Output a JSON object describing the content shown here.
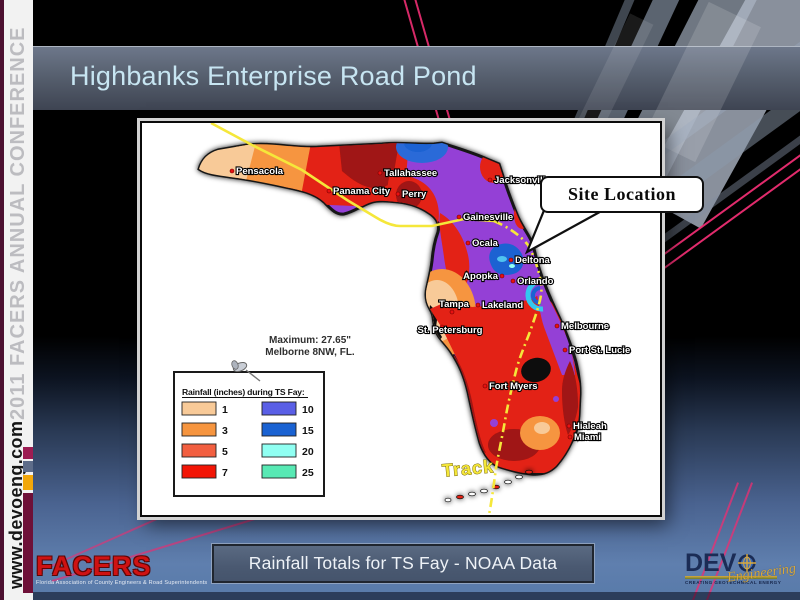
{
  "slide": {
    "title": "Highbanks Enterprise Road Pond"
  },
  "sidebar": {
    "conference": "2011 FACERS ANNUAL CONFERENCE",
    "website": "www.devoeng.com"
  },
  "map": {
    "callout": "Site Location",
    "track_label": "Track",
    "maximum_line1": "Maximum: 27.65\"",
    "maximum_line2": "Melborne 8NW, FL.",
    "legend": {
      "title": "Rainfall (inches) during TS Fay:",
      "items": [
        {
          "label": "1",
          "color": "#F8CA98"
        },
        {
          "label": "3",
          "color": "#F6953F"
        },
        {
          "label": "5",
          "color": "#F25F40"
        },
        {
          "label": "7",
          "color": "#F21505"
        },
        {
          "label": "10",
          "color": "#5A5FE6"
        },
        {
          "label": "15",
          "color": "#1A62D2"
        },
        {
          "label": "20",
          "color": "#90FFF2"
        },
        {
          "label": "25",
          "color": "#58E9B4"
        }
      ]
    },
    "cities": [
      {
        "name": "Pensacola",
        "label": [
          94,
          51
        ],
        "anchor": "start",
        "dot": [
          90,
          48
        ]
      },
      {
        "name": "Panama City",
        "label": [
          191,
          71
        ],
        "anchor": "start",
        "dot": [
          187,
          68
        ]
      },
      {
        "name": "Tallahassee",
        "label": [
          242,
          53
        ],
        "anchor": "start",
        "dot": [
          238,
          50
        ]
      },
      {
        "name": "Perry",
        "label": [
          260,
          74
        ],
        "anchor": "start",
        "dot": [
          256,
          71
        ]
      },
      {
        "name": "Jacksonville",
        "label": [
          352,
          60
        ],
        "anchor": "start",
        "dot": [
          348,
          57
        ]
      },
      {
        "name": "Gainesville",
        "label": [
          321,
          97
        ],
        "anchor": "start",
        "dot": [
          317,
          94
        ]
      },
      {
        "name": "Ocala",
        "label": [
          330,
          123
        ],
        "anchor": "start",
        "dot": [
          326,
          120
        ]
      },
      {
        "name": "Deltona",
        "label": [
          373,
          140
        ],
        "anchor": "start",
        "dot": [
          369,
          137
        ]
      },
      {
        "name": "Apopka",
        "label": [
          356,
          156
        ],
        "anchor": "end",
        "dot": [
          360,
          153
        ]
      },
      {
        "name": "Orlando",
        "label": [
          375,
          161
        ],
        "anchor": "start",
        "dot": [
          371,
          158
        ]
      },
      {
        "name": "Tampa",
        "label": [
          312,
          184
        ],
        "anchor": "middle",
        "dot": [
          310,
          189
        ]
      },
      {
        "name": "Lakeland",
        "label": [
          340,
          185
        ],
        "anchor": "start",
        "dot": [
          336,
          182
        ]
      },
      {
        "name": "St. Petersburg",
        "label": [
          308,
          210
        ],
        "anchor": "middle",
        "dot": [
          300,
          204
        ]
      },
      {
        "name": "Melbourne",
        "label": [
          419,
          206
        ],
        "anchor": "start",
        "dot": [
          415,
          203
        ]
      },
      {
        "name": "Port St. Lucie",
        "label": [
          427,
          230
        ],
        "anchor": "start",
        "dot": [
          423,
          227
        ]
      },
      {
        "name": "Fort Myers",
        "label": [
          347,
          266
        ],
        "anchor": "start",
        "dot": [
          343,
          263
        ]
      },
      {
        "name": "Hialeah",
        "label": [
          431,
          306
        ],
        "anchor": "start",
        "dot": [
          427,
          303
        ]
      },
      {
        "name": "Miami",
        "label": [
          432,
          317
        ],
        "anchor": "start",
        "dot": [
          428,
          314
        ]
      }
    ]
  },
  "caption": "Rainfall Totals for TS Fay - NOAA Data",
  "footer": {
    "facers": "FACERS",
    "facers_tagline": "Florida Association of County Engineers & Road Superintendents",
    "devo_name": "DEV",
    "devo_script": "Engineering",
    "devo_tagline": "CREATING GEOTECHNICAL ENERGY"
  }
}
